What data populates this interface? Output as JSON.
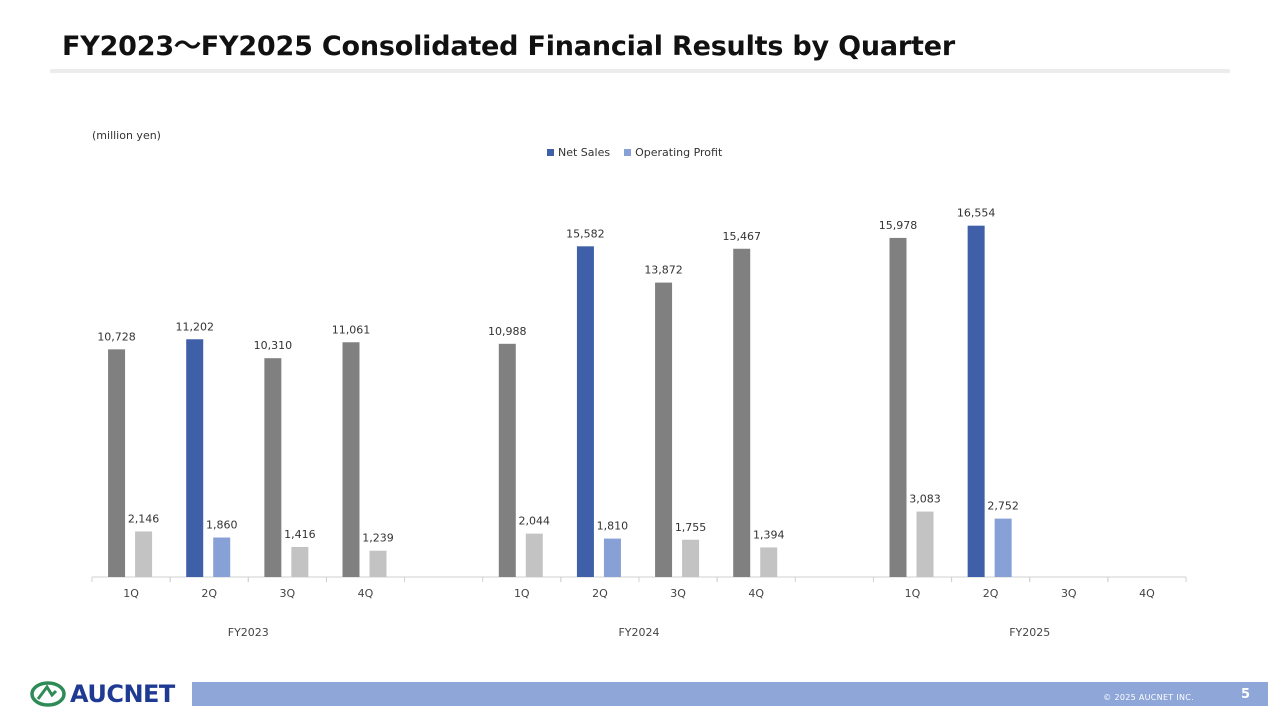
{
  "title": "FY2023〜FY2025 Consolidated Financial Results by Quarter",
  "chart_data": {
    "type": "bar",
    "unit_label": "(million yen)",
    "legend": [
      {
        "name": "Net Sales",
        "color": "#3f5fa8"
      },
      {
        "name": "Operating Profit",
        "color": "#87a0d6"
      }
    ],
    "legend_position": "top-center",
    "groups": [
      "FY2023",
      "FY2024",
      "FY2025"
    ],
    "categories": [
      "1Q",
      "2Q",
      "3Q",
      "4Q"
    ],
    "series": [
      {
        "name": "Net Sales",
        "values": [
          [
            10728,
            11202,
            10310,
            11061
          ],
          [
            10988,
            15582,
            13872,
            15467
          ],
          [
            15978,
            16554,
            null,
            null
          ]
        ],
        "labels": [
          [
            "10,728",
            "11,202",
            "10,310",
            "11,061"
          ],
          [
            "10,988",
            "15,582",
            "13,872",
            "15,467"
          ],
          [
            "15,978",
            "16,554",
            "",
            ""
          ]
        ]
      },
      {
        "name": "Operating Profit",
        "values": [
          [
            2146,
            1860,
            1416,
            1239
          ],
          [
            2044,
            1810,
            1755,
            1394
          ],
          [
            3083,
            2752,
            null,
            null
          ]
        ],
        "labels": [
          [
            "2,146",
            "1,860",
            "1,416",
            "1,239"
          ],
          [
            "2,044",
            "1,810",
            "1,755",
            "1,394"
          ],
          [
            "3,083",
            "2,752",
            "",
            ""
          ]
        ]
      }
    ],
    "highlight_quarter": "2Q",
    "colors": {
      "net_sales_base": "#808080",
      "net_sales_highlight": "#3f5fa8",
      "profit_base": "#c3c3c3",
      "profit_highlight": "#87a0d6"
    },
    "ylim": [
      0,
      18000
    ],
    "grid": false
  },
  "footer": {
    "logo_text": "AUCNET",
    "copyright": "© 2025 AUCNET INC.",
    "page_number": "5"
  }
}
